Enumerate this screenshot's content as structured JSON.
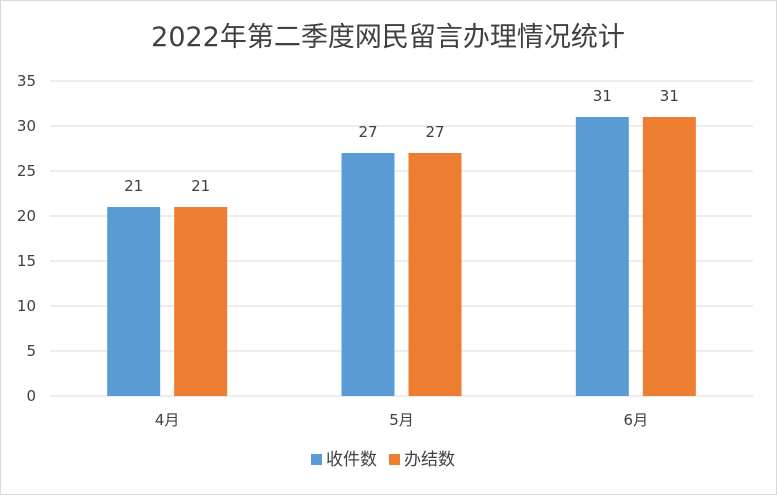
{
  "chart_data": {
    "type": "bar",
    "title": "2022年第二季度网民留言办理情况统计",
    "xlabel": "",
    "ylabel": "",
    "categories": [
      "4月",
      "5月",
      "6月"
    ],
    "series": [
      {
        "name": "收件数",
        "values": [
          21,
          27,
          31
        ],
        "color": "#5b9bd5"
      },
      {
        "name": "办结数",
        "values": [
          21,
          27,
          31
        ],
        "color": "#ed7d31"
      }
    ],
    "ylim": [
      0,
      35
    ],
    "yticks": [
      0,
      5,
      10,
      15,
      20,
      25,
      30,
      35
    ],
    "grid": true,
    "data_labels": true,
    "legend_position": "bottom",
    "gridline_color": "#d9d9d9",
    "text_color": "#404040"
  }
}
